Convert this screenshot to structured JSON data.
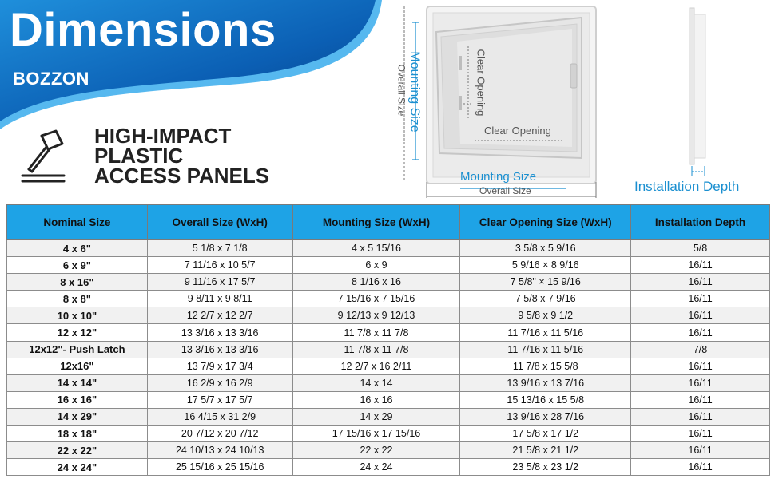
{
  "banner": {
    "title": "Dimensions",
    "brand": "BOZZON",
    "colors": {
      "dark": "#0a4fa3",
      "mid": "#1276c9",
      "light": "#2aa5ea"
    }
  },
  "heading": {
    "icon": "hammer-icon",
    "lines": [
      "HIGH-IMPACT",
      "PLASTIC",
      "ACCESS PANELS"
    ]
  },
  "diagram": {
    "mounting_size_vertical": "Mounting Size",
    "overall_size_vertical": "Overall Size",
    "clear_opening_vertical": "Clear Opening",
    "clear_opening_horizontal": "Clear Opening",
    "mounting_size_horizontal": "Mounting Size",
    "overall_size_horizontal": "Overall Size",
    "installation_depth": "Installation Depth"
  },
  "table": {
    "headers": [
      "Nominal Size",
      "Overall Size (WxH)",
      "Mounting Size (WxH)",
      "Clear Opening Size (WxH)",
      "Installation Depth"
    ],
    "rows": [
      [
        "4 x 6\"",
        "5 1/8 x 7 1/8",
        "4 x 5 15/16",
        "3 5/8 x 5 9/16",
        "5/8"
      ],
      [
        "6 x 9\"",
        "7 11/16 x 10 5/7",
        "6 x 9",
        "5 9/16 × 8 9/16",
        "16/11"
      ],
      [
        "8 x 16\"",
        "9 11/16 x 17 5/7",
        "8 1/16 x 16",
        "7 5/8\" × 15 9/16",
        "16/11"
      ],
      [
        "8 x 8\"",
        "9 8/11 x 9 8/11",
        "7 15/16 x 7 15/16",
        "7 5/8 x 7 9/16",
        "16/11"
      ],
      [
        "10 x 10\"",
        "12 2/7 x 12 2/7",
        "9 12/13 x 9 12/13",
        "9 5/8 x 9 1/2",
        "16/11"
      ],
      [
        "12 x 12\"",
        "13 3/16 x 13 3/16",
        "11 7/8 x 11 7/8",
        "11 7/16 x 11 5/16",
        "16/11"
      ],
      [
        "12x12\"- Push Latch",
        "13 3/16 x 13 3/16",
        "11 7/8 x 11 7/8",
        "11 7/16 x 11 5/16",
        "7/8"
      ],
      [
        "12x16\"",
        "13 7/9 x 17 3/4",
        "12 2/7 x 16 2/11",
        "11 7/8 x 15 5/8",
        "16/11"
      ],
      [
        "14 x 14\"",
        "16 2/9 x 16 2/9",
        "14 x 14",
        "13 9/16 x 13 7/16",
        "16/11"
      ],
      [
        "16 x 16\"",
        "17 5/7 x 17 5/7",
        "16 x 16",
        "15 13/16 x 15 5/8",
        "16/11"
      ],
      [
        "14 x 29\"",
        "16 4/15 x 31 2/9",
        "14 x 29",
        "13 9/16 x 28 7/16",
        "16/11"
      ],
      [
        "18 x 18\"",
        "20 7/12 x 20 7/12",
        "17 15/16 x 17 15/16",
        "17 5/8 x 17 1/2",
        "16/11"
      ],
      [
        "22 x 22\"",
        "24 10/13 x 24 10/13",
        "22 x 22",
        "21 5/8 x 21 1/2",
        "16/11"
      ],
      [
        "24 x 24\"",
        "25 15/16 x 25 15/16",
        "24 x 24",
        "23 5/8 x 23 1/2",
        "16/11"
      ]
    ]
  }
}
